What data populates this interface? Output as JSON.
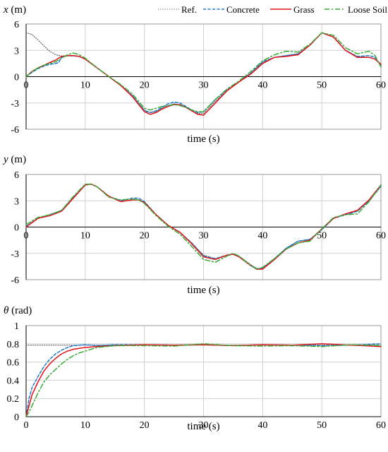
{
  "legend": {
    "placement": "top-right",
    "entries": [
      {
        "label": "Ref.",
        "color": "#555555",
        "style": "dotted"
      },
      {
        "label": "Concrete",
        "color": "#1f78c8",
        "style": "dashed"
      },
      {
        "label": "Grass",
        "color": "#e3141b",
        "style": "solid"
      },
      {
        "label": "Loose Soil",
        "color": "#3aaa35",
        "style": "dash-dot"
      }
    ]
  },
  "chart_data": [
    {
      "type": "line",
      "ylabel_var": "x",
      "ylabel_unit": " (m)",
      "xlabel": "time (s)",
      "xlim": [
        0,
        60
      ],
      "ylim": [
        -6,
        6
      ],
      "xticks": [
        0,
        10,
        20,
        30,
        40,
        50,
        60
      ],
      "yticks": [
        6,
        3,
        0,
        -3,
        -6
      ],
      "grid": true,
      "series": [
        {
          "name": "Ref.",
          "x": [
            0,
            1,
            2,
            3,
            4,
            5,
            6,
            7,
            8,
            9,
            10,
            12,
            14,
            16,
            18,
            20,
            21,
            22,
            23,
            24,
            25,
            26,
            27,
            28,
            29,
            30,
            32,
            34,
            36,
            38,
            40,
            42,
            44,
            46,
            48,
            50,
            52,
            54,
            56,
            58,
            59,
            60
          ],
          "y": [
            5.0,
            4.8,
            4.2,
            3.5,
            2.9,
            2.5,
            2.35,
            2.35,
            2.4,
            2.3,
            2.0,
            1.0,
            0.0,
            -1.0,
            -2.2,
            -3.8,
            -4.1,
            -4.0,
            -3.6,
            -3.3,
            -3.1,
            -3.2,
            -3.5,
            -3.9,
            -4.2,
            -4.2,
            -2.8,
            -1.6,
            -0.6,
            0.4,
            1.6,
            2.2,
            2.4,
            2.6,
            3.6,
            5.0,
            4.5,
            3.0,
            2.3,
            2.2,
            2.0,
            1.3
          ]
        },
        {
          "name": "Concrete",
          "x": [
            0,
            1,
            2,
            3,
            4,
            5,
            5.5,
            6,
            7,
            8,
            9,
            10,
            12,
            14,
            16,
            18,
            20,
            21,
            22,
            23,
            24,
            25,
            26,
            27,
            28,
            29,
            30,
            32,
            34,
            36,
            38,
            40,
            42,
            44,
            46,
            48,
            50,
            52,
            54,
            56,
            58,
            59,
            60
          ],
          "y": [
            0.0,
            0.5,
            0.9,
            1.2,
            1.4,
            1.5,
            1.6,
            2.2,
            2.4,
            2.35,
            2.3,
            2.0,
            1.0,
            0.0,
            -1.0,
            -2.2,
            -3.9,
            -4.1,
            -3.9,
            -3.5,
            -3.1,
            -2.9,
            -3.0,
            -3.4,
            -3.8,
            -4.1,
            -4.0,
            -2.6,
            -1.5,
            -0.6,
            0.4,
            1.7,
            2.2,
            2.4,
            2.6,
            3.6,
            5.0,
            4.5,
            3.0,
            2.3,
            2.4,
            2.2,
            1.3
          ]
        },
        {
          "name": "Grass",
          "x": [
            0,
            1,
            2,
            3,
            4,
            5,
            6,
            7,
            8,
            9,
            10,
            12,
            14,
            16,
            18,
            20,
            21,
            22,
            23,
            24,
            25,
            26,
            27,
            28,
            29,
            30,
            32,
            34,
            36,
            38,
            40,
            42,
            44,
            46,
            48,
            50,
            52,
            54,
            56,
            58,
            59,
            60
          ],
          "y": [
            0.0,
            0.6,
            1.0,
            1.3,
            1.6,
            1.9,
            2.3,
            2.4,
            2.4,
            2.3,
            2.0,
            1.0,
            0.0,
            -1.0,
            -2.3,
            -4.0,
            -4.3,
            -4.1,
            -3.7,
            -3.4,
            -3.2,
            -3.2,
            -3.5,
            -3.9,
            -4.3,
            -4.4,
            -3.0,
            -1.6,
            -0.6,
            0.3,
            1.5,
            2.2,
            2.3,
            2.5,
            3.6,
            5.0,
            4.5,
            3.0,
            2.2,
            2.2,
            2.0,
            1.4
          ]
        },
        {
          "name": "Loose Soil",
          "x": [
            0,
            1,
            2,
            3,
            4,
            5,
            6,
            7,
            8,
            9,
            10,
            12,
            14,
            16,
            18,
            20,
            21,
            22,
            23,
            24,
            25,
            26,
            27,
            28,
            29,
            30,
            32,
            34,
            36,
            38,
            40,
            42,
            44,
            46,
            48,
            50,
            52,
            54,
            56,
            58,
            59,
            60
          ],
          "y": [
            0.0,
            0.6,
            1.0,
            1.3,
            1.5,
            1.7,
            2.1,
            2.5,
            2.7,
            2.5,
            2.1,
            1.0,
            0.0,
            -0.9,
            -2.0,
            -3.6,
            -3.8,
            -3.6,
            -3.4,
            -3.3,
            -3.2,
            -3.3,
            -3.5,
            -3.8,
            -4.0,
            -4.0,
            -2.6,
            -1.4,
            -0.5,
            0.6,
            1.8,
            2.5,
            2.9,
            2.8,
            3.7,
            5.0,
            4.7,
            3.3,
            2.6,
            2.9,
            2.4,
            1.1
          ]
        }
      ]
    },
    {
      "type": "line",
      "ylabel_var": "y",
      "ylabel_unit": " (m)",
      "xlabel": "time (s)",
      "xlim": [
        0,
        60
      ],
      "ylim": [
        -6,
        6
      ],
      "xticks": [
        0,
        10,
        20,
        30,
        40,
        50,
        60
      ],
      "yticks": [
        6,
        3,
        0,
        -3,
        -6
      ],
      "grid": true,
      "series": [
        {
          "name": "Ref.",
          "x": [
            0,
            2,
            4,
            6,
            8,
            10,
            11,
            12,
            14,
            16,
            18,
            19,
            20,
            22,
            24,
            26,
            28,
            30,
            32,
            34,
            35,
            36,
            38,
            39,
            40,
            42,
            44,
            46,
            48,
            50,
            52,
            54,
            56,
            58,
            60
          ],
          "y": [
            0.0,
            1.0,
            1.4,
            1.9,
            3.4,
            4.8,
            4.9,
            4.6,
            3.5,
            2.9,
            3.1,
            3.1,
            2.8,
            1.4,
            0.2,
            -0.6,
            -1.8,
            -3.2,
            -3.6,
            -3.2,
            -3.1,
            -3.3,
            -4.3,
            -4.7,
            -4.7,
            -3.6,
            -2.4,
            -1.6,
            -1.4,
            -0.3,
            1.0,
            1.4,
            1.8,
            3.0,
            4.6
          ]
        },
        {
          "name": "Concrete",
          "x": [
            0,
            2,
            4,
            6,
            8,
            10,
            11,
            12,
            14,
            16,
            18,
            19,
            20,
            22,
            24,
            26,
            28,
            30,
            32,
            34,
            35,
            36,
            38,
            39,
            40,
            42,
            44,
            46,
            48,
            50,
            52,
            54,
            56,
            58,
            60
          ],
          "y": [
            0.1,
            1.0,
            1.4,
            1.9,
            3.4,
            4.8,
            4.9,
            4.6,
            3.5,
            3.0,
            3.3,
            3.3,
            2.9,
            1.4,
            0.2,
            -0.6,
            -1.8,
            -3.3,
            -3.6,
            -3.2,
            -3.1,
            -3.4,
            -4.4,
            -4.8,
            -4.7,
            -3.6,
            -2.4,
            -1.6,
            -1.4,
            -0.3,
            1.0,
            1.4,
            1.8,
            3.0,
            4.7
          ]
        },
        {
          "name": "Grass",
          "x": [
            0,
            2,
            4,
            6,
            8,
            10,
            11,
            12,
            14,
            16,
            18,
            19,
            20,
            22,
            24,
            26,
            28,
            30,
            32,
            34,
            35,
            36,
            38,
            39,
            40,
            42,
            44,
            46,
            48,
            50,
            52,
            54,
            56,
            58,
            60
          ],
          "y": [
            0.0,
            1.0,
            1.3,
            1.8,
            3.3,
            4.8,
            4.9,
            4.6,
            3.5,
            2.9,
            3.1,
            3.1,
            2.8,
            1.4,
            0.2,
            -0.6,
            -1.9,
            -3.4,
            -3.7,
            -3.2,
            -3.1,
            -3.4,
            -4.4,
            -4.8,
            -4.8,
            -3.7,
            -2.5,
            -1.8,
            -1.5,
            -0.2,
            1.0,
            1.5,
            1.9,
            3.1,
            4.8
          ]
        },
        {
          "name": "Loose Soil",
          "x": [
            0,
            2,
            4,
            6,
            8,
            10,
            11,
            12,
            14,
            16,
            18,
            19,
            20,
            22,
            24,
            26,
            28,
            30,
            32,
            34,
            35,
            36,
            38,
            39,
            40,
            42,
            44,
            46,
            48,
            50,
            52,
            54,
            56,
            58,
            60
          ],
          "y": [
            0.3,
            1.1,
            1.4,
            1.9,
            3.5,
            4.9,
            4.9,
            4.6,
            3.4,
            3.1,
            3.2,
            3.1,
            2.7,
            1.3,
            0.1,
            -0.8,
            -2.2,
            -3.7,
            -4.0,
            -3.3,
            -3.0,
            -3.3,
            -4.4,
            -4.8,
            -4.6,
            -3.6,
            -2.5,
            -1.8,
            -1.6,
            -0.2,
            1.1,
            1.4,
            1.5,
            2.9,
            4.8
          ]
        }
      ]
    },
    {
      "type": "line",
      "ylabel_var": "θ",
      "ylabel_unit": " (rad)",
      "xlabel": "time (s)",
      "xlim": [
        0,
        60
      ],
      "ylim": [
        0,
        1
      ],
      "xticks": [
        0,
        10,
        20,
        30,
        40,
        50,
        60
      ],
      "yticks": [
        1,
        0.8,
        0.6,
        0.4,
        0.2,
        0
      ],
      "ytick_labels": [
        "1",
        "0.8",
        "0.6",
        "0.4",
        "0.2",
        "0"
      ],
      "grid": true,
      "series": [
        {
          "name": "Ref.",
          "x": [
            0,
            60
          ],
          "y": [
            0.785,
            0.785
          ]
        },
        {
          "name": "Concrete",
          "x": [
            0,
            0.5,
            1,
            1.5,
            2,
            3,
            4,
            5,
            6,
            7,
            8,
            9,
            10,
            12,
            15,
            20,
            25,
            30,
            35,
            40,
            45,
            50,
            55,
            60
          ],
          "y": [
            0.0,
            0.2,
            0.32,
            0.38,
            0.44,
            0.55,
            0.63,
            0.69,
            0.73,
            0.76,
            0.78,
            0.785,
            0.79,
            0.78,
            0.79,
            0.79,
            0.785,
            0.79,
            0.78,
            0.79,
            0.785,
            0.78,
            0.785,
            0.8
          ]
        },
        {
          "name": "Grass",
          "x": [
            0,
            0.5,
            1,
            2,
            3,
            4,
            5,
            6,
            7,
            8,
            9,
            10,
            12,
            15,
            20,
            25,
            30,
            35,
            40,
            45,
            50,
            55,
            60
          ],
          "y": [
            0.0,
            0.12,
            0.24,
            0.38,
            0.5,
            0.58,
            0.64,
            0.69,
            0.72,
            0.74,
            0.75,
            0.76,
            0.77,
            0.78,
            0.79,
            0.785,
            0.79,
            0.78,
            0.79,
            0.785,
            0.8,
            0.785,
            0.77
          ]
        },
        {
          "name": "Loose Soil",
          "x": [
            0,
            0.5,
            1,
            2,
            3,
            4,
            5,
            6,
            7,
            8,
            9,
            10,
            12,
            15,
            20,
            25,
            30,
            35,
            40,
            45,
            50,
            55,
            60
          ],
          "y": [
            0.0,
            0.05,
            0.12,
            0.26,
            0.38,
            0.46,
            0.52,
            0.58,
            0.63,
            0.67,
            0.7,
            0.72,
            0.76,
            0.78,
            0.78,
            0.775,
            0.8,
            0.78,
            0.775,
            0.78,
            0.77,
            0.79,
            0.78
          ]
        }
      ]
    }
  ]
}
